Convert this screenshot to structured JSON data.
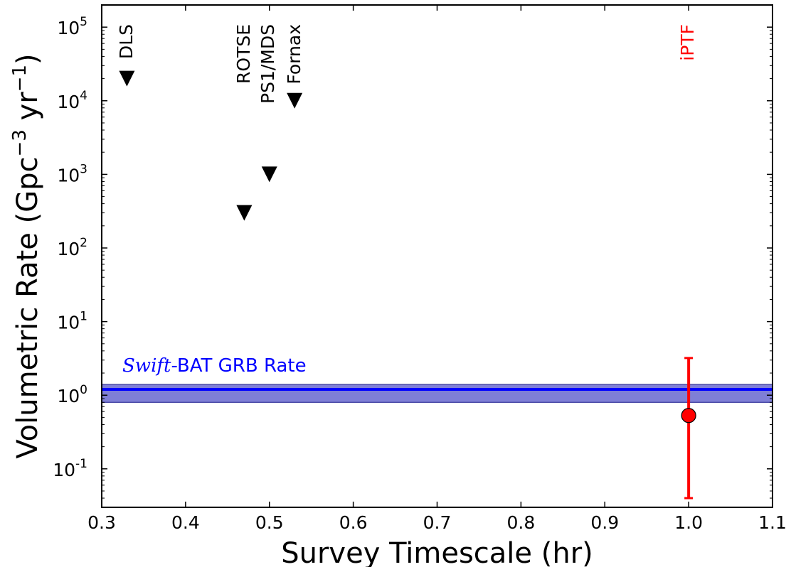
{
  "chart_data": {
    "type": "scatter",
    "title": "",
    "xlabel": "Survey Timescale (hr)",
    "ylabel": "Volumetric Rate (Gpc",
    "ylabel_sup1": "−3",
    "ylabel_mid": " yr",
    "ylabel_sup2": "−1",
    "ylabel_end": ")",
    "x_scale": "linear",
    "y_scale": "log",
    "xlim": [
      0.3,
      1.1
    ],
    "ylim": [
      0.03,
      200000
    ],
    "x_ticks": [
      {
        "v": 0.3,
        "label": "0.3"
      },
      {
        "v": 0.4,
        "label": "0.4"
      },
      {
        "v": 0.5,
        "label": "0.5"
      },
      {
        "v": 0.6,
        "label": "0.6"
      },
      {
        "v": 0.7,
        "label": "0.7"
      },
      {
        "v": 0.8,
        "label": "0.8"
      },
      {
        "v": 0.9,
        "label": "0.9"
      },
      {
        "v": 1.0,
        "label": "1.0"
      },
      {
        "v": 1.1,
        "label": "1.1"
      }
    ],
    "y_ticks": [
      {
        "exp": -1,
        "base": "10",
        "sup": "-1"
      },
      {
        "exp": 0,
        "base": "10",
        "sup": "0"
      },
      {
        "exp": 1,
        "base": "10",
        "sup": "1"
      },
      {
        "exp": 2,
        "base": "10",
        "sup": "2"
      },
      {
        "exp": 3,
        "base": "10",
        "sup": "3"
      },
      {
        "exp": 4,
        "base": "10",
        "sup": "4"
      },
      {
        "exp": 5,
        "base": "10",
        "sup": "5"
      }
    ],
    "upper_limits": [
      {
        "label": "DLS",
        "x": 0.33,
        "y": 20000
      },
      {
        "label": "ROTSE",
        "x": 0.47,
        "y": 300
      },
      {
        "label": "PS1/MDS",
        "x": 0.5,
        "y": 1000
      },
      {
        "label": "Fornax",
        "x": 0.53,
        "y": 10000
      }
    ],
    "measurement": {
      "label": "iPTF",
      "x": 1.0,
      "y": 0.53,
      "y_low": 0.04,
      "y_high": 3.2,
      "color": "#ff0000"
    },
    "band": {
      "label_italic": "Swift",
      "label_rest": "-BAT GRB Rate",
      "y": 1.2,
      "y_low": 0.8,
      "y_high": 1.4,
      "color": "#0000ff",
      "fill": "#7f7fd6"
    }
  }
}
